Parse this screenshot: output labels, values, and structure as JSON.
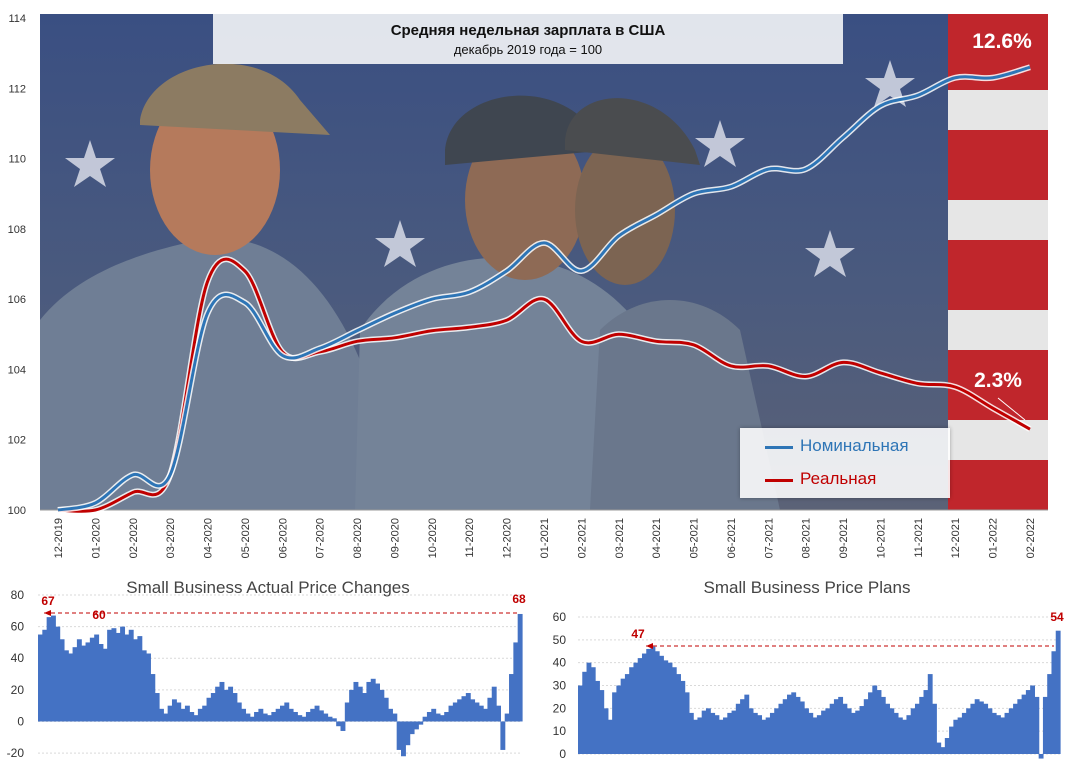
{
  "colors": {
    "nominal": "#2e75b6",
    "real": "#c00000",
    "bar": "#4472c4",
    "annotation": "#c00000",
    "axis_text": "#333333"
  },
  "chart_data": [
    {
      "type": "line",
      "title": "Средняя недельная зарплата в США",
      "subtitle": "декабрь 2019 года = 100",
      "categories": [
        "12-2019",
        "01-2020",
        "02-2020",
        "03-2020",
        "04-2020",
        "05-2020",
        "06-2020",
        "07-2020",
        "08-2020",
        "09-2020",
        "10-2020",
        "11-2020",
        "12-2020",
        "01-2021",
        "02-2021",
        "03-2021",
        "04-2021",
        "05-2021",
        "06-2021",
        "07-2021",
        "08-2021",
        "09-2021",
        "10-2021",
        "11-2021",
        "12-2021",
        "01-2022",
        "02-2022"
      ],
      "ylim": [
        100,
        114
      ],
      "yticks": [
        "100",
        "102",
        "104",
        "106",
        "108",
        "110",
        "112",
        "114"
      ],
      "series": [
        {
          "name": "Номинальная",
          "color": "#2e75b6",
          "values": [
            100.0,
            100.2,
            101.0,
            101.0,
            105.6,
            105.9,
            104.4,
            104.6,
            105.1,
            105.6,
            106.0,
            106.2,
            106.8,
            107.6,
            106.8,
            107.8,
            108.4,
            109.0,
            109.2,
            109.7,
            109.7,
            110.6,
            111.5,
            111.8,
            112.3,
            112.3,
            112.6
          ]
        },
        {
          "name": "Реальная",
          "color": "#c00000",
          "values": [
            100.0,
            100.0,
            100.5,
            101.0,
            106.5,
            106.8,
            104.5,
            104.5,
            104.8,
            104.9,
            105.1,
            105.2,
            105.4,
            106.0,
            104.8,
            105.0,
            104.8,
            104.7,
            104.1,
            104.1,
            103.8,
            104.2,
            103.9,
            103.6,
            103.5,
            102.9,
            102.3
          ]
        }
      ],
      "annotations": [
        "12.6%",
        "2.3%"
      ]
    },
    {
      "type": "bar",
      "title": "Small Business Actual Price Changes",
      "ylim": [
        -25,
        80
      ],
      "yticks": [
        "80",
        "60",
        "40",
        "20",
        "0",
        "-20"
      ],
      "annotations": [
        {
          "text": "67"
        },
        {
          "text": "60"
        },
        {
          "text": "68"
        }
      ],
      "values": [
        55,
        58,
        66,
        67,
        60,
        52,
        45,
        43,
        47,
        52,
        48,
        50,
        53,
        55,
        49,
        46,
        58,
        59,
        56,
        60,
        55,
        58,
        52,
        54,
        45,
        43,
        30,
        18,
        8,
        5,
        10,
        14,
        12,
        8,
        10,
        6,
        4,
        8,
        10,
        15,
        18,
        22,
        25,
        20,
        22,
        18,
        12,
        8,
        5,
        3,
        6,
        8,
        5,
        4,
        6,
        8,
        10,
        12,
        8,
        6,
        4,
        3,
        6,
        8,
        10,
        7,
        5,
        3,
        2,
        -3,
        -6,
        12,
        20,
        25,
        22,
        18,
        25,
        27,
        24,
        20,
        15,
        8,
        5,
        -18,
        -22,
        -15,
        -8,
        -5,
        -2,
        3,
        6,
        8,
        5,
        4,
        6,
        10,
        12,
        14,
        16,
        18,
        14,
        12,
        10,
        8,
        15,
        22,
        10,
        -18,
        5,
        30,
        50,
        68
      ]
    },
    {
      "type": "bar",
      "title": "Small Business Price Plans",
      "ylim": [
        0,
        60
      ],
      "yticks": [
        "60",
        "50",
        "40",
        "30",
        "20",
        "10",
        "0"
      ],
      "annotations": [
        {
          "text": "47"
        },
        {
          "text": "54"
        }
      ],
      "values": [
        30,
        36,
        40,
        38,
        32,
        28,
        20,
        15,
        27,
        30,
        33,
        35,
        38,
        40,
        42,
        44,
        46,
        47,
        45,
        43,
        41,
        40,
        38,
        35,
        32,
        27,
        18,
        15,
        16,
        19,
        20,
        18,
        17,
        15,
        16,
        18,
        19,
        22,
        24,
        26,
        20,
        18,
        17,
        15,
        16,
        18,
        20,
        22,
        24,
        26,
        27,
        25,
        23,
        20,
        18,
        16,
        17,
        19,
        20,
        22,
        24,
        25,
        22,
        20,
        18,
        19,
        21,
        24,
        27,
        30,
        28,
        25,
        22,
        20,
        18,
        16,
        15,
        17,
        20,
        22,
        25,
        28,
        35,
        22,
        5,
        3,
        7,
        12,
        15,
        16,
        18,
        20,
        22,
        24,
        23,
        22,
        20,
        18,
        17,
        16,
        18,
        20,
        22,
        24,
        26,
        28,
        30,
        25,
        -2,
        25,
        35,
        45,
        54
      ]
    }
  ]
}
